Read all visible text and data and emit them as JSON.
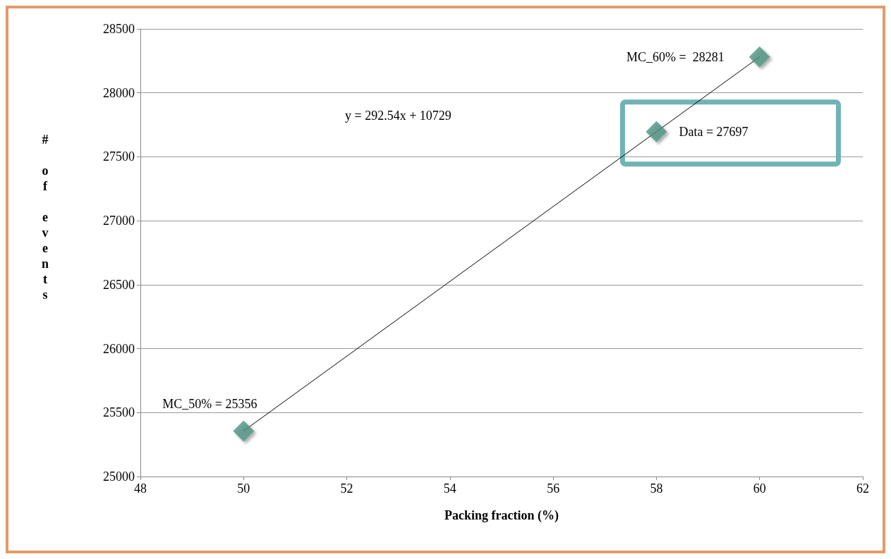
{
  "chart_data": {
    "type": "scatter",
    "xlabel": "Packing fraction (%)",
    "ylabel": "# of events",
    "series": [
      {
        "color": "#4f9384",
        "marker": "diamond",
        "x": [
          50,
          58,
          60
        ],
        "values": [
          25356,
          27697,
          28281
        ]
      },
      {
        "type": "line",
        "marker": "none",
        "color": "#000000",
        "x": [
          50,
          60
        ],
        "values": [
          25356,
          28281
        ]
      }
    ],
    "annotations": [
      "y = 292.54x + 10729",
      {
        "text": "MC_50% = 25356",
        "x": 50,
        "y": 25356
      },
      {
        "text": "Data = 27697",
        "x": 58,
        "y": 27697
      },
      {
        "text": "MC_60% =  28281",
        "x": 60,
        "y": 28281
      }
    ],
    "xlim": [
      48,
      62
    ],
    "xticks": [
      48,
      50,
      52,
      54,
      56,
      58,
      60,
      62
    ],
    "ylim": [
      25000,
      28500
    ],
    "yticks": [
      25000,
      25500,
      26000,
      26500,
      27000,
      27500,
      28000,
      28500
    ],
    "grid": "y",
    "line_style": "solid"
  }
}
